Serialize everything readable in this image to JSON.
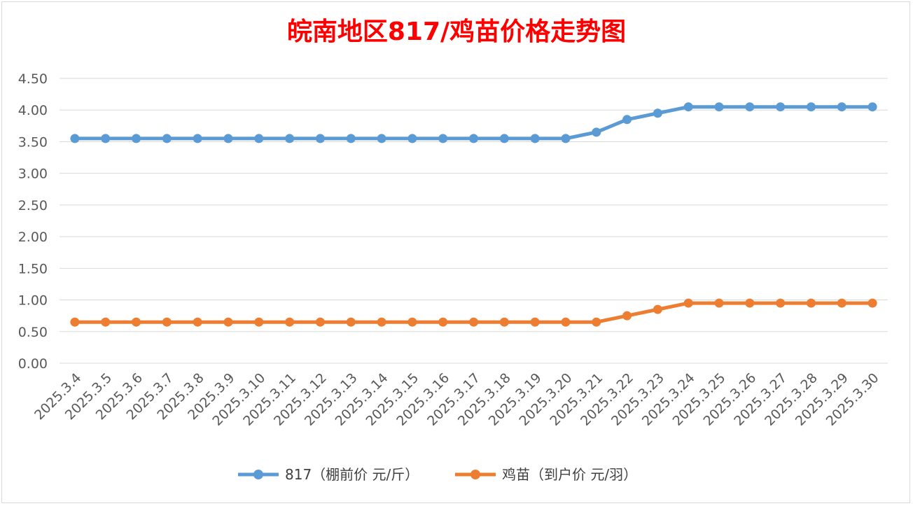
{
  "chart_data": {
    "type": "line",
    "title": "皖南地区817/鸡苗价格走势图",
    "xlabel": "",
    "ylabel": "",
    "ylim": [
      0,
      4.5
    ],
    "yticks": [
      "0.00",
      "0.50",
      "1.00",
      "1.50",
      "2.00",
      "2.50",
      "3.00",
      "3.50",
      "4.00",
      "4.50"
    ],
    "grid": true,
    "legend_position": "bottom",
    "categories": [
      "2025.3.4",
      "2025.3.5",
      "2025.3.6",
      "2025.3.7",
      "2025.3.8",
      "2025.3.9",
      "2025.3.10",
      "2025.3.11",
      "2025.3.12",
      "2025.3.13",
      "2025.3.14",
      "2025.3.15",
      "2025.3.16",
      "2025.3.17",
      "2025.3.18",
      "2025.3.19",
      "2025.3.20",
      "2025.3.21",
      "2025.3.22",
      "2025.3.23",
      "2025.3.24",
      "2025.3.25",
      "2025.3.26",
      "2025.3.27",
      "2025.3.28",
      "2025.3.29",
      "2025.3.30"
    ],
    "series": [
      {
        "name": "817（棚前价 元/斤）",
        "color": "#5b9bd5",
        "values": [
          3.55,
          3.55,
          3.55,
          3.55,
          3.55,
          3.55,
          3.55,
          3.55,
          3.55,
          3.55,
          3.55,
          3.55,
          3.55,
          3.55,
          3.55,
          3.55,
          3.55,
          3.65,
          3.85,
          3.95,
          4.05,
          4.05,
          4.05,
          4.05,
          4.05,
          4.05,
          4.05
        ]
      },
      {
        "name": "鸡苗（到户价 元/羽）",
        "color": "#ed7d31",
        "values": [
          0.65,
          0.65,
          0.65,
          0.65,
          0.65,
          0.65,
          0.65,
          0.65,
          0.65,
          0.65,
          0.65,
          0.65,
          0.65,
          0.65,
          0.65,
          0.65,
          0.65,
          0.65,
          0.75,
          0.85,
          0.95,
          0.95,
          0.95,
          0.95,
          0.95,
          0.95,
          0.95
        ]
      }
    ]
  }
}
